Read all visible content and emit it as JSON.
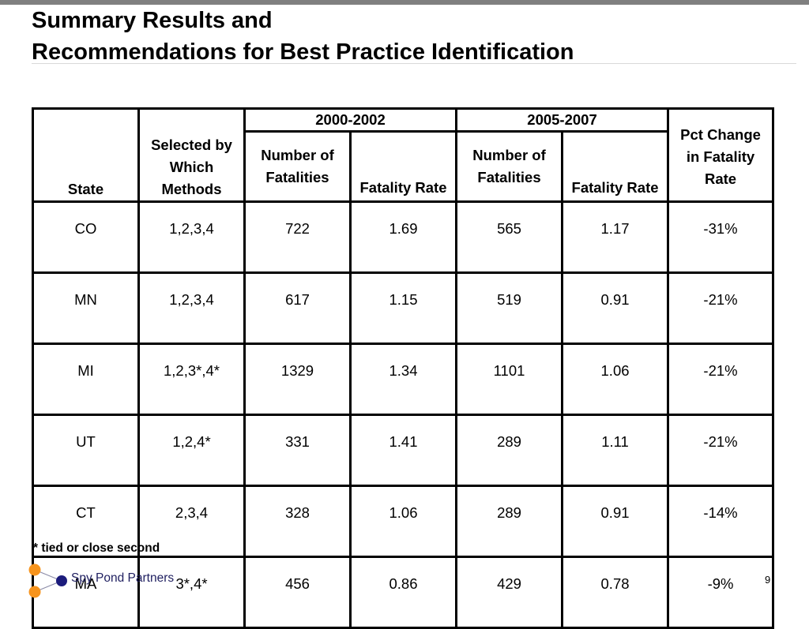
{
  "title_line1": "Summary Results and",
  "title_line2": "Recommendations for Best Practice Identification",
  "table": {
    "headers": {
      "state": "State",
      "methods": [
        "Selected by",
        "Which",
        "Methods"
      ],
      "period1": "2000-2002",
      "period2": "2005-2007",
      "fatalities": [
        "Number of",
        "Fatalities"
      ],
      "fatality_rate": "Fatality Rate",
      "pct_change": [
        "Pct Change",
        "in Fatality",
        "Rate"
      ]
    },
    "rows": [
      [
        "CO",
        "1,2,3,4",
        "722",
        "1.69",
        "565",
        "1.17",
        "-31%"
      ],
      [
        "MN",
        "1,2,3,4",
        "617",
        "1.15",
        "519",
        "0.91",
        "-21%"
      ],
      [
        "MI",
        "1,2,3*,4*",
        "1329",
        "1.34",
        "1101",
        "1.06",
        "-21%"
      ],
      [
        "UT",
        "1,2,4*",
        "331",
        "1.41",
        "289",
        "1.11",
        "-21%"
      ],
      [
        "CT",
        "2,3,4",
        "328",
        "1.06",
        "289",
        "0.91",
        "-14%"
      ],
      [
        "MA",
        "3*,4*",
        "456",
        "0.86",
        "429",
        "0.78",
        "-9%"
      ]
    ]
  },
  "footnote": "* tied or close second",
  "brand": "Spy Pond Partners",
  "page_number": "9",
  "colors": {
    "orange": "#f7941d",
    "navy": "#1c1c7c",
    "gray_bar": "#808080"
  }
}
